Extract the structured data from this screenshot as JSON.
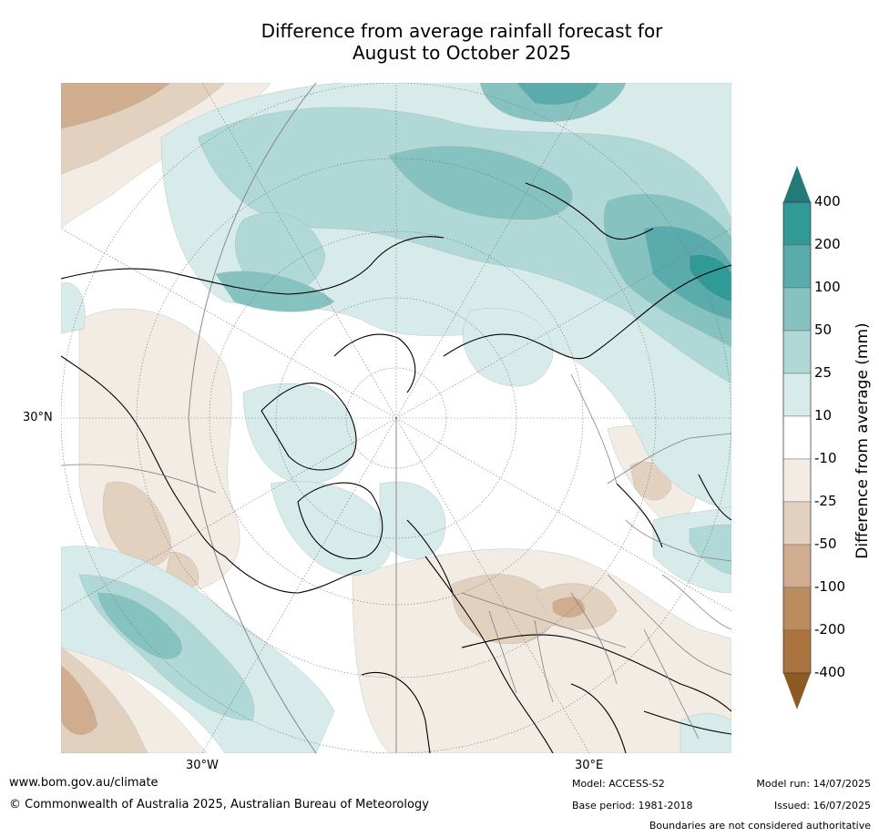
{
  "title_line1": "Difference from average rainfall forecast for",
  "title_line2": "August to October 2025",
  "map": {
    "projection": "north-polar-stereographic",
    "lat_label": "30°N",
    "lon_labels": [
      "30°W",
      "30°E"
    ],
    "colors": {
      "wet_400": "#237a78",
      "wet_200": "#2f9a96",
      "wet_100": "#59acab",
      "wet_50": "#86c2c0",
      "wet_25": "#b0d8d7",
      "wet_10": "#d7ebea",
      "neutral": "#ffffff",
      "dry_10": "#f2ece5",
      "dry_25": "#e3d1c0",
      "dry_50": "#cfad8e",
      "dry_100": "#bb8c5e",
      "dry_200": "#ab7340",
      "dry_400": "#8e5a23",
      "coastline": "#000000",
      "borders": "#808080"
    }
  },
  "colorbar": {
    "title": "Difference from average (mm)",
    "labels": [
      "400",
      "200",
      "100",
      "50",
      "25",
      "10",
      "-10",
      "-25",
      "-50",
      "-100",
      "-200",
      "-400"
    ]
  },
  "footer": {
    "url": "www.bom.gov.au/climate",
    "copyright": "© Commonwealth of Australia 2025, Australian Bureau of Meteorology",
    "model": "Model: ACCESS-S2",
    "base_period": "Base period: 1981-2018",
    "model_run": "Model run: 14/07/2025",
    "issued": "Issued: 16/07/2025",
    "disclaimer": "Boundaries are not considered authoritative"
  }
}
